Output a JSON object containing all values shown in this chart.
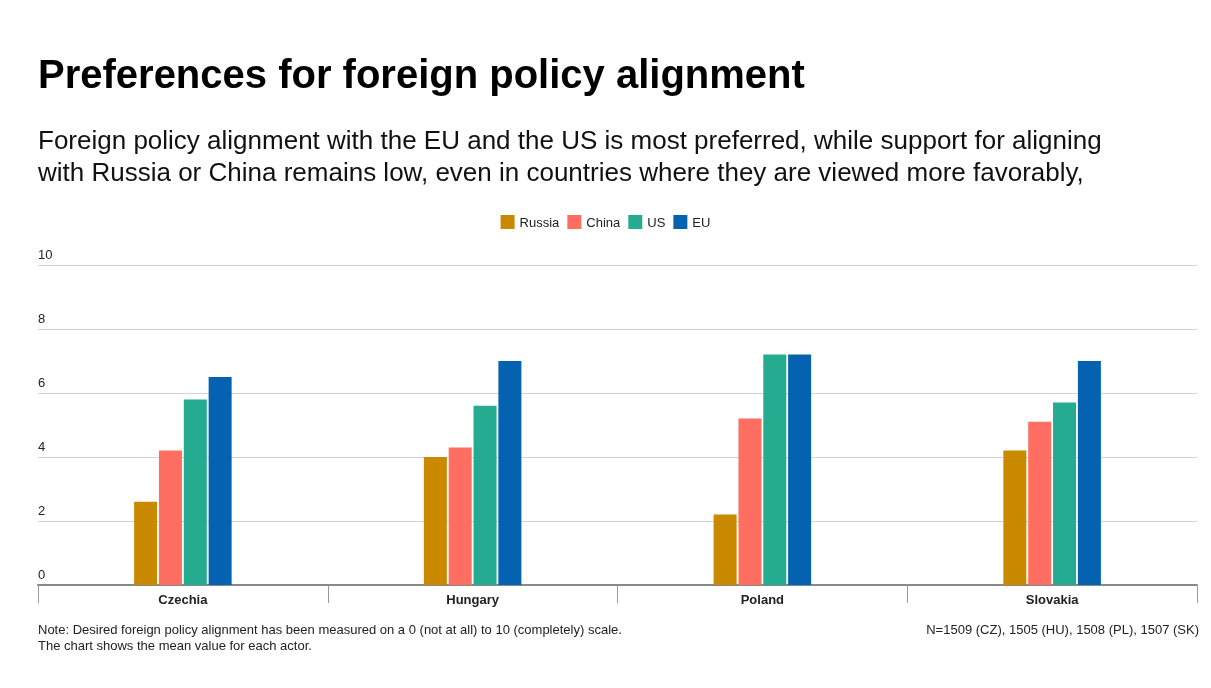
{
  "chart_data": {
    "type": "bar",
    "title": "Preferences for foreign policy alignment",
    "subtitle": "Foreign policy alignment with the EU and the US is most preferred, while support for aligning with Russia or China remains low, even in countries where they are viewed more favorably,",
    "categories": [
      "Czechia",
      "Hungary",
      "Poland",
      "Slovakia"
    ],
    "series": [
      {
        "name": "Russia",
        "color": "#c98a00",
        "values": [
          2.6,
          4.0,
          2.2,
          4.2
        ]
      },
      {
        "name": "China",
        "color": "#fe6f61",
        "values": [
          4.2,
          4.3,
          5.2,
          5.1
        ]
      },
      {
        "name": "US",
        "color": "#25ab8f",
        "values": [
          5.8,
          5.6,
          7.2,
          5.7
        ]
      },
      {
        "name": "EU",
        "color": "#0462b0",
        "values": [
          6.5,
          7.0,
          7.2,
          7.0
        ]
      }
    ],
    "ylim": [
      0,
      10
    ],
    "yticks": [
      0,
      2,
      4,
      6,
      8,
      10
    ],
    "grid": "y",
    "legend": "top",
    "annotations": [
      "Note: Desired foreign policy alignment has been measured on a 0 (not at all) to 10 (completely) scale.\nThe chart shows the mean value for each actor.",
      "N=1509 (CZ), 1505 (HU), 1508 (PL), 1507 (SK)"
    ]
  }
}
